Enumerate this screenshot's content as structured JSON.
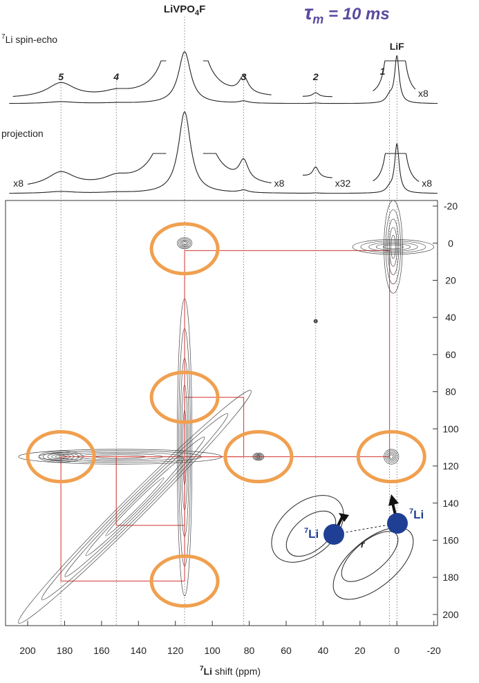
{
  "chart_data": {
    "type": "contour",
    "title": {
      "symbol": "τ",
      "sub": "m",
      "rest": " = 10 ms"
    },
    "echo": {
      "label_sup": "7",
      "label": "Li spin-echo",
      "segments": [
        {
          "from": 208,
          "to": 125,
          "scale": 8
        },
        {
          "from": 105,
          "to": 68,
          "scale": 8
        },
        {
          "from": 51,
          "to": 35,
          "scale": 8
        },
        {
          "from": 13,
          "to": -10,
          "scale": 8,
          "label": "x8"
        }
      ]
    },
    "projection": {
      "label": "projection",
      "segments": [
        {
          "from": 200,
          "to": 125,
          "scale": 8,
          "label": "x8"
        },
        {
          "from": 105,
          "to": 68,
          "scale": 8,
          "label": "x8"
        },
        {
          "from": 51,
          "to": 35,
          "scale": 32,
          "label": "x32"
        },
        {
          "from": 13,
          "to": -12,
          "scale": 8,
          "label": "x8"
        }
      ]
    },
    "peaks": [
      {
        "label": "5",
        "shift": 182,
        "width": 9,
        "echo": 0.035,
        "projection": 0.022
      },
      {
        "label": "4",
        "shift": 152,
        "width": 8,
        "echo": 0.01,
        "projection": 0.01
      },
      {
        "label": [
          "LiVPO",
          "4",
          "F"
        ],
        "shift": 115,
        "width": 4,
        "echo": 1,
        "projection": 1
      },
      {
        "label": "3",
        "shift": 83,
        "width": 3,
        "echo": 0.04,
        "projection": 0.03
      },
      {
        "label": "2",
        "shift": 44,
        "width": 2,
        "echo": 0.01,
        "projection": 0.004
      },
      {
        "label": "1",
        "shift": 4,
        "width": 2,
        "echo": 0.12,
        "projection": 0.05
      },
      {
        "label": "LiF",
        "shift": 0,
        "width": 1.5,
        "echo": 0.9,
        "projection": 0.6
      }
    ],
    "contours": [
      {
        "x": 142,
        "y": 142,
        "rx": 89,
        "ry": 6,
        "angle": -45
      },
      {
        "x": 115,
        "y": 110,
        "rx": 4,
        "ry": 80,
        "angle": 0
      },
      {
        "x": 150,
        "y": 115,
        "rx": 55,
        "ry": 4,
        "angle": 0
      },
      {
        "x": 2,
        "y": 2,
        "rx": 5,
        "ry": 25,
        "angle": 0
      },
      {
        "x": 2,
        "y": 2,
        "rx": 22,
        "ry": 4,
        "angle": 0
      },
      {
        "x": 115,
        "y": 0,
        "rx": 4,
        "ry": 3,
        "angle": 0
      },
      {
        "x": 3,
        "y": 115,
        "rx": 4,
        "ry": 4,
        "angle": 0
      },
      {
        "x": 75,
        "y": 115,
        "rx": 3,
        "ry": 2,
        "angle": 0
      },
      {
        "x": 182,
        "y": 115,
        "rx": 12,
        "ry": 3,
        "angle": 0
      },
      {
        "x": 44,
        "y": 42,
        "rx": 1,
        "ry": 1,
        "angle": 0
      }
    ],
    "correlations": [
      [
        115,
        4
      ],
      [
        182,
        115
      ],
      [
        152,
        115
      ],
      [
        83,
        115
      ]
    ],
    "highlights": [
      [
        115,
        3
      ],
      [
        115,
        83
      ],
      [
        182,
        115
      ],
      [
        75,
        115
      ],
      [
        3,
        115
      ],
      [
        115,
        182
      ]
    ],
    "xlim": [
      212,
      -22
    ],
    "ylim": [
      -23,
      206
    ],
    "xticks": [
      200,
      180,
      160,
      140,
      120,
      100,
      80,
      60,
      40,
      20,
      0,
      -20
    ],
    "yticks": [
      -20,
      0,
      20,
      40,
      60,
      80,
      100,
      120,
      140,
      160,
      180,
      200
    ],
    "x_label": {
      "sup": "7",
      "main": "Li",
      "rest": " shift (ppm)"
    },
    "scheme": {
      "left": {
        "sup": "7",
        "main": "Li"
      },
      "right": {
        "sup": "7",
        "main": "Li"
      },
      "distance": "r"
    },
    "box_color": "#d9534f",
    "highlight_color": "#f0a050",
    "title_color": "#5b4a9e"
  }
}
